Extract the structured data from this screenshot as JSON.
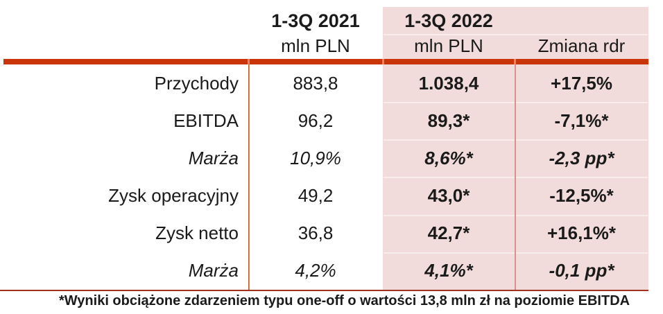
{
  "table": {
    "header": {
      "col_2021": {
        "title": "1-3Q 2021",
        "subtitle": "mln PLN"
      },
      "col_2022": {
        "title": "1-3Q 2022",
        "subtitle": "mln PLN"
      },
      "col_change": {
        "title": "Zmiana rdr"
      }
    },
    "rows": [
      {
        "label": "Przychody",
        "v2021": "883,8",
        "v2022": "1.038,4",
        "change": "+17,5%"
      },
      {
        "label": "EBITDA",
        "v2021": "96,2",
        "v2022": "89,3*",
        "change": "-7,1%*"
      },
      {
        "label": "Marża",
        "v2021": "10,9%",
        "v2022": "8,6%*",
        "change": "-2,3 pp*"
      },
      {
        "label": "Zysk operacyjny",
        "v2021": "49,2",
        "v2022": "43,0*",
        "change": "-12,5%*"
      },
      {
        "label": "Zysk netto",
        "v2021": "36,8",
        "v2022": "42,7*",
        "change": "+16,1%*"
      },
      {
        "label": "Marża",
        "v2021": "4,2%",
        "v2022": "4,1%*",
        "change": "-0,1 pp*"
      }
    ],
    "footnote": "*Wyniki obciążone zdarzeniem typu one-off o wartości 13,8 mln zł na poziomie EBITDA"
  },
  "colors": {
    "accent_bar": "#C93508",
    "panel_pink": "#F2DCDB",
    "divider_rose": "#D6918D",
    "divider_orange": "#C65A1E",
    "bottom_rule": "#A23220",
    "text": "#1A1A1A"
  }
}
